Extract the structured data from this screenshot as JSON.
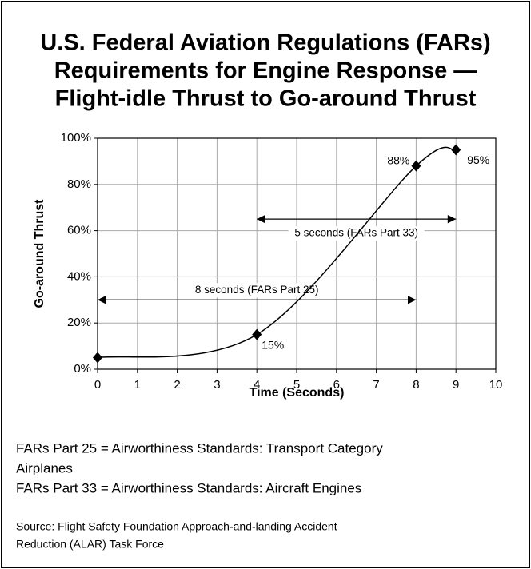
{
  "chart_data": {
    "type": "line",
    "title": [
      "U.S. Federal Aviation Regulations (FARs)",
      "Requirements for Engine Response —",
      "Flight-idle Thrust to Go-around Thrust"
    ],
    "x_label": "Time (Seconds)",
    "y_label": "Go-around Thrust",
    "x": [
      0,
      4,
      8,
      9
    ],
    "values": [
      5,
      15,
      88,
      95
    ],
    "value_labels": [
      null,
      "15%",
      "88%",
      "95%"
    ],
    "color": "#000000",
    "xlim": [
      0,
      10
    ],
    "xticks": [
      0,
      1,
      2,
      3,
      4,
      5,
      6,
      7,
      8,
      9,
      10
    ],
    "ylim": [
      0,
      100
    ],
    "yticks": [
      {
        "value": 0,
        "label": "0%"
      },
      {
        "value": 20,
        "label": "20%"
      },
      {
        "value": 40,
        "label": "40%"
      },
      {
        "value": 60,
        "label": "60%"
      },
      {
        "value": 80,
        "label": "80%"
      },
      {
        "value": 100,
        "label": "100%"
      }
    ],
    "grid": true,
    "annotations": [
      {
        "text": "5 seconds (FARs Part 33)",
        "x": [
          4,
          9
        ],
        "y": 65
      },
      {
        "text": "8 seconds (FARs Part 25)",
        "x": [
          0,
          8
        ],
        "y": 30
      }
    ],
    "notes": [
      "FARs Part 25 = Airworthiness Standards: Transport Category",
      "Airplanes",
      "FARs Part 33 = Airworthiness Standards: Aircraft Engines"
    ],
    "source": [
      "Source: Flight Safety Foundation Approach-and-landing Accident",
      "Reduction (ALAR) Task Force"
    ]
  }
}
